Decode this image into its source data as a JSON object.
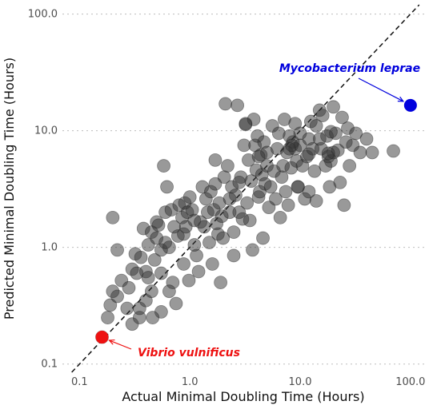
{
  "chart_data": {
    "type": "scatter",
    "title": "",
    "xlabel": "Actual Minimal Doubling Time (Hours)",
    "ylabel": "Predicted Minimal Doubling Time (Hours)",
    "xscale": "log",
    "yscale": "log",
    "xlim": [
      0.07,
      140
    ],
    "ylim": [
      0.085,
      120
    ],
    "xticks": [
      0.1,
      1,
      10,
      100
    ],
    "xtick_labels": [
      "0.1",
      "1.0",
      "10.0",
      "100.0"
    ],
    "yticks": [
      0.1,
      1,
      10,
      100
    ],
    "ytick_labels": [
      "0.1",
      "1.0",
      "10.0",
      "100.0"
    ],
    "grid": "horizontal dotted",
    "reference_line": "y = x (dashed)",
    "point_color": "#333333",
    "points": [
      [
        0.16,
        0.17
      ],
      [
        0.18,
        0.25
      ],
      [
        0.19,
        0.32
      ],
      [
        0.2,
        1.8
      ],
      [
        0.2,
        0.42
      ],
      [
        0.22,
        0.38
      ],
      [
        0.24,
        0.52
      ],
      [
        0.27,
        0.3
      ],
      [
        0.28,
        0.45
      ],
      [
        0.3,
        0.65
      ],
      [
        0.3,
        0.22
      ],
      [
        0.32,
        0.88
      ],
      [
        0.35,
        0.25
      ],
      [
        0.35,
        0.3
      ],
      [
        0.38,
        1.45
      ],
      [
        0.4,
        0.62
      ],
      [
        0.4,
        0.35
      ],
      [
        0.42,
        0.55
      ],
      [
        0.42,
        1.05
      ],
      [
        0.45,
        1.35
      ],
      [
        0.45,
        0.42
      ],
      [
        0.48,
        0.78
      ],
      [
        0.5,
        1.65
      ],
      [
        0.5,
        1.2
      ],
      [
        0.52,
        1.55
      ],
      [
        0.55,
        0.95
      ],
      [
        0.55,
        0.28
      ],
      [
        0.58,
        5.0
      ],
      [
        0.6,
        1.1
      ],
      [
        0.6,
        2.0
      ],
      [
        0.62,
        3.3
      ],
      [
        0.65,
        1.0
      ],
      [
        0.68,
        2.1
      ],
      [
        0.7,
        0.5
      ],
      [
        0.72,
        1.5
      ],
      [
        0.75,
        0.33
      ],
      [
        0.78,
        1.25
      ],
      [
        0.8,
        2.3
      ],
      [
        0.85,
        1.8
      ],
      [
        0.88,
        0.72
      ],
      [
        0.9,
        2.4
      ],
      [
        0.92,
        1.5
      ],
      [
        0.95,
        2.0
      ],
      [
        0.98,
        0.52
      ],
      [
        1.0,
        2.7
      ],
      [
        1.05,
        2.1
      ],
      [
        1.1,
        1.7
      ],
      [
        1.15,
        0.85
      ],
      [
        1.2,
        0.62
      ],
      [
        1.3,
        3.3
      ],
      [
        1.35,
        1.5
      ],
      [
        1.4,
        2.6
      ],
      [
        1.45,
        2.0
      ],
      [
        1.5,
        1.1
      ],
      [
        1.55,
        3.0
      ],
      [
        1.6,
        0.72
      ],
      [
        1.65,
        2.1
      ],
      [
        1.7,
        3.5
      ],
      [
        1.75,
        1.6
      ],
      [
        1.8,
        1.3
      ],
      [
        1.85,
        2.4
      ],
      [
        1.9,
        0.5
      ],
      [
        1.95,
        1.85
      ],
      [
        2.0,
        1.2
      ],
      [
        2.05,
        4.0
      ],
      [
        2.1,
        17.0
      ],
      [
        2.2,
        5.0
      ],
      [
        2.3,
        2.0
      ],
      [
        2.4,
        3.3
      ],
      [
        2.5,
        1.35
      ],
      [
        2.5,
        0.85
      ],
      [
        2.6,
        2.8
      ],
      [
        2.7,
        16.5
      ],
      [
        2.8,
        2.0
      ],
      [
        2.9,
        4.0
      ],
      [
        3.0,
        1.75
      ],
      [
        3.1,
        7.5
      ],
      [
        3.2,
        11.3
      ],
      [
        3.3,
        2.4
      ],
      [
        3.4,
        5.6
      ],
      [
        3.5,
        1.7
      ],
      [
        3.6,
        3.7
      ],
      [
        3.7,
        0.95
      ],
      [
        3.8,
        12.5
      ],
      [
        3.9,
        7.5
      ],
      [
        4.0,
        4.6
      ],
      [
        4.1,
        9.0
      ],
      [
        4.2,
        2.7
      ],
      [
        4.3,
        3.0
      ],
      [
        4.4,
        6.2
      ],
      [
        4.5,
        4.2
      ],
      [
        4.6,
        1.2
      ],
      [
        4.7,
        8.0
      ],
      [
        4.8,
        3.5
      ],
      [
        5.0,
        5.0
      ],
      [
        5.0,
        6.5
      ],
      [
        5.2,
        2.2
      ],
      [
        5.4,
        3.3
      ],
      [
        5.6,
        11.0
      ],
      [
        5.8,
        4.5
      ],
      [
        6.0,
        2.6
      ],
      [
        6.2,
        7.0
      ],
      [
        6.4,
        9.5
      ],
      [
        6.6,
        1.8
      ],
      [
        6.8,
        4.0
      ],
      [
        7.0,
        5.0
      ],
      [
        7.2,
        12.5
      ],
      [
        7.4,
        3.0
      ],
      [
        7.6,
        6.5
      ],
      [
        7.8,
        2.3
      ],
      [
        8.0,
        9.0
      ],
      [
        8.3,
        4.8
      ],
      [
        8.6,
        8.0
      ],
      [
        9.0,
        7.0
      ],
      [
        9.0,
        11.5
      ],
      [
        9.3,
        5.5
      ],
      [
        9.6,
        3.3
      ],
      [
        10.0,
        7.5
      ],
      [
        10.0,
        9.5
      ],
      [
        10.5,
        5.0
      ],
      [
        11.0,
        2.6
      ],
      [
        11.5,
        6.0
      ],
      [
        12.0,
        8.5
      ],
      [
        12.0,
        3.0
      ],
      [
        12.5,
        12.0
      ],
      [
        13.0,
        7.0
      ],
      [
        13.5,
        4.5
      ],
      [
        14.0,
        11.0
      ],
      [
        14.0,
        2.5
      ],
      [
        15.0,
        15.0
      ],
      [
        15.5,
        7.0
      ],
      [
        16.0,
        13.5
      ],
      [
        17.0,
        5.0
      ],
      [
        17.5,
        9.0
      ],
      [
        18.0,
        6.0
      ],
      [
        18.5,
        3.3
      ],
      [
        19.0,
        5.5
      ],
      [
        20.0,
        6.5
      ],
      [
        20.0,
        16.0
      ],
      [
        21.0,
        9.5
      ],
      [
        22.0,
        6.8
      ],
      [
        23.0,
        3.6
      ],
      [
        24.0,
        13.0
      ],
      [
        25.0,
        2.3
      ],
      [
        26.0,
        8.0
      ],
      [
        27.0,
        10.5
      ],
      [
        28.0,
        5.0
      ],
      [
        30.0,
        7.5
      ],
      [
        32.0,
        9.5
      ],
      [
        35.0,
        6.5
      ],
      [
        40.0,
        8.5
      ],
      [
        45.0,
        6.5
      ],
      [
        70.0,
        6.7
      ],
      [
        8.0,
        7.0
      ],
      [
        8.4,
        7.5
      ],
      [
        12.0,
        6.3
      ],
      [
        18.0,
        6.4
      ],
      [
        19.0,
        9.8
      ],
      [
        3.2,
        11.5
      ],
      [
        9.5,
        3.3
      ],
      [
        4.2,
        6.0
      ],
      [
        15.0,
        8.5
      ],
      [
        0.22,
        0.95
      ],
      [
        0.33,
        0.6
      ],
      [
        0.36,
        0.82
      ],
      [
        0.55,
        0.6
      ],
      [
        0.65,
        0.42
      ],
      [
        0.88,
        1.3
      ],
      [
        1.1,
        1.05
      ],
      [
        1.25,
        1.65
      ],
      [
        2.3,
        2.6
      ],
      [
        2.8,
        3.6
      ],
      [
        0.46,
        0.25
      ],
      [
        1.7,
        5.6
      ]
    ],
    "annotations": [
      {
        "label": "Mycobacterium leprae",
        "x": 100,
        "y": 16.5,
        "color": "#0000dd"
      },
      {
        "label": "Vibrio vulnificus",
        "x": 0.16,
        "y": 0.17,
        "color": "#ee1111"
      }
    ]
  }
}
